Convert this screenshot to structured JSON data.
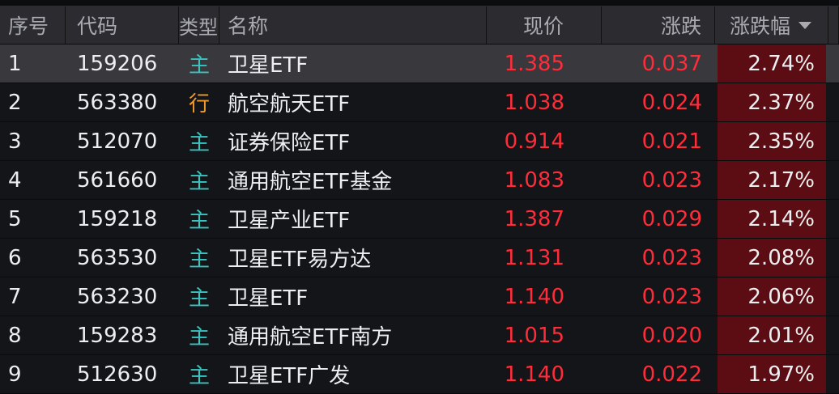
{
  "header": {
    "index": "序号",
    "code": "代码",
    "type": "类型",
    "name": "名称",
    "price": "现价",
    "change": "涨跌",
    "pct": "涨跌幅",
    "sort_icon": "triangle-down-icon"
  },
  "colors": {
    "up": "#ff2c3a",
    "pct_bg": "#5c0d13",
    "type_main": "#3bc4be",
    "type_industry": "#f09a2a"
  },
  "rows": [
    {
      "index": "1",
      "code": "159206",
      "type": "主",
      "name": "卫星ETF",
      "price": "1.385",
      "change": "0.037",
      "pct": "2.74%",
      "selected": true
    },
    {
      "index": "2",
      "code": "563380",
      "type": "行",
      "name": "航空航天ETF",
      "price": "1.038",
      "change": "0.024",
      "pct": "2.37%"
    },
    {
      "index": "3",
      "code": "512070",
      "type": "主",
      "name": "证券保险ETF",
      "price": "0.914",
      "change": "0.021",
      "pct": "2.35%"
    },
    {
      "index": "4",
      "code": "561660",
      "type": "主",
      "name": "通用航空ETF基金",
      "price": "1.083",
      "change": "0.023",
      "pct": "2.17%"
    },
    {
      "index": "5",
      "code": "159218",
      "type": "主",
      "name": "卫星产业ETF",
      "price": "1.387",
      "change": "0.029",
      "pct": "2.14%"
    },
    {
      "index": "6",
      "code": "563530",
      "type": "主",
      "name": "卫星ETF易方达",
      "price": "1.131",
      "change": "0.023",
      "pct": "2.08%"
    },
    {
      "index": "7",
      "code": "563230",
      "type": "主",
      "name": "卫星ETF",
      "price": "1.140",
      "change": "0.023",
      "pct": "2.06%"
    },
    {
      "index": "8",
      "code": "159283",
      "type": "主",
      "name": "通用航空ETF南方",
      "price": "1.015",
      "change": "0.020",
      "pct": "2.01%"
    },
    {
      "index": "9",
      "code": "512630",
      "type": "主",
      "name": "卫星ETF广发",
      "price": "1.140",
      "change": "0.022",
      "pct": "1.97%"
    }
  ]
}
